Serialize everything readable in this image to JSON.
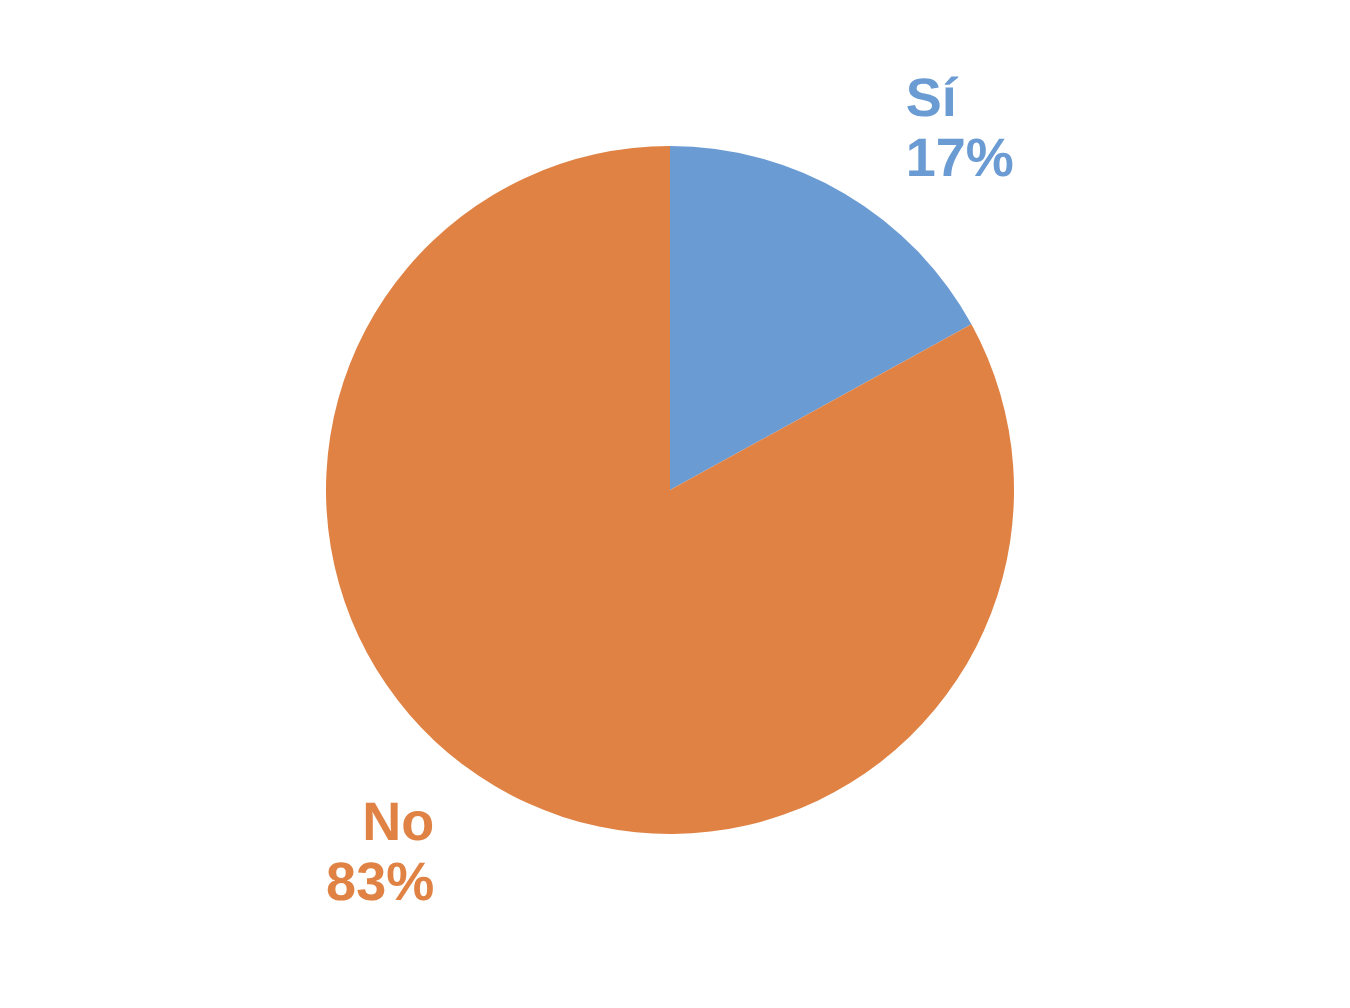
{
  "chart_data": {
    "type": "pie",
    "categories": [
      "Sí",
      "No"
    ],
    "values": [
      17,
      83
    ],
    "colors": [
      "#6a9bd3",
      "#e08244"
    ],
    "value_labels": [
      "17%",
      "83%"
    ],
    "legend": false
  }
}
